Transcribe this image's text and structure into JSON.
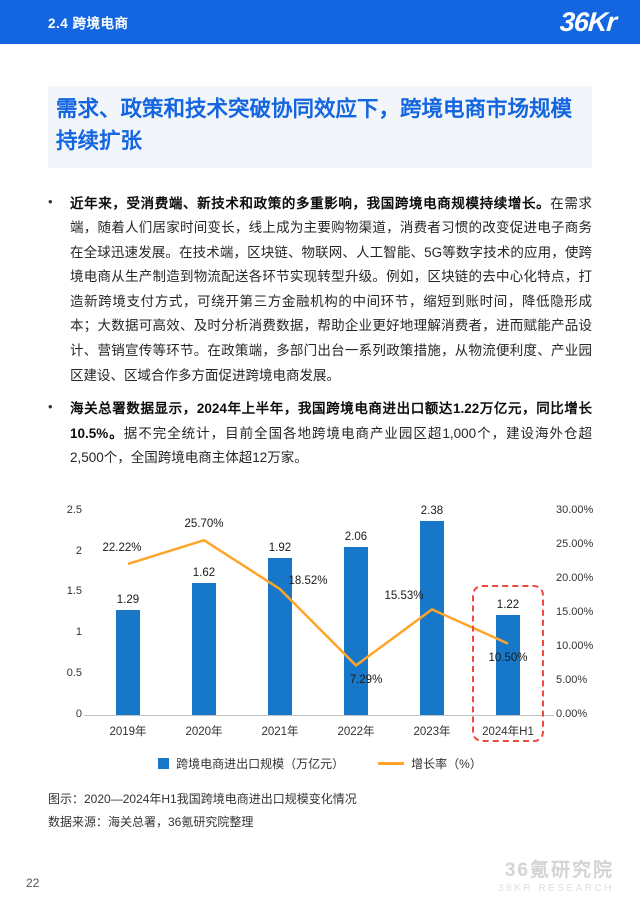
{
  "header": {
    "section": "2.4 跨境电商",
    "logo": "36Kr"
  },
  "title": "需求、政策和技术突破协同效应下，跨境电商市场规模持续扩张",
  "bullets": [
    {
      "bold": "近年来，受消费端、新技术和政策的多重影响，我国跨境电商规模持续增长。",
      "rest": "在需求端，随着人们居家时间变长，线上成为主要购物渠道，消费者习惯的改变促进电子商务在全球迅速发展。在技术端，区块链、物联网、人工智能、5G等数字技术的应用，使跨境电商从生产制造到物流配送各环节实现转型升级。例如，区块链的去中心化特点，打造新跨境支付方式，可绕开第三方金融机构的中间环节，缩短到账时间，降低隐形成本；大数据可高效、及时分析消费数据，帮助企业更好地理解消费者，进而赋能产品设计、营销宣传等环节。在政策端，多部门出台一系列政策措施，从物流便利度、产业园区建设、区域合作多方面促进跨境电商发展。"
    },
    {
      "bold": "海关总署数据显示，2024年上半年，我国跨境电商进出口额达1.22万亿元，同比增长10.5%。",
      "rest": "据不完全统计，目前全国各地跨境电商产业园区超1,000个，建设海外仓超2,500个，全国跨境电商主体超12万家。"
    }
  ],
  "chart_data": {
    "type": "bar",
    "subtype": "bar+line combo, dual axis",
    "categories": [
      "2019年",
      "2020年",
      "2021年",
      "2022年",
      "2023年",
      "2024年H1"
    ],
    "series": [
      {
        "name": "跨境电商进出口规模（万亿元）",
        "type": "bar",
        "axis": "left",
        "color": "#1778c9",
        "values": [
          1.29,
          1.62,
          1.92,
          2.06,
          2.38,
          1.22
        ]
      },
      {
        "name": "增长率（%）",
        "type": "line",
        "axis": "right",
        "color": "#ffa428",
        "values": [
          22.22,
          25.7,
          18.52,
          7.29,
          15.53,
          10.5
        ]
      }
    ],
    "bar_labels": [
      "1.29",
      "1.62",
      "1.92",
      "2.06",
      "2.38",
      "1.22"
    ],
    "line_labels": [
      "22.22%",
      "25.70%",
      "18.52%",
      "7.29%",
      "15.53%",
      "10.50%"
    ],
    "left_axis": {
      "min": 0,
      "max": 2.5,
      "step": 0.5,
      "ticks": [
        "0",
        "0.5",
        "1",
        "1.5",
        "2",
        "2.5"
      ]
    },
    "right_axis": {
      "min": 0,
      "max": 30,
      "step": 5,
      "ticks": [
        "0.00%",
        "5.00%",
        "10.00%",
        "15.00%",
        "20.00%",
        "25.00%",
        "30.00%"
      ]
    },
    "grid": false,
    "legend_position": "bottom",
    "legend": [
      "跨境电商进出口规模（万亿元）",
      "增长率（%）"
    ],
    "highlight_category": "2024年H1",
    "highlight_color": "#ee4b40"
  },
  "captions": [
    "图示：2020—2024年H1我国跨境电商进出口规模变化情况",
    "数据来源：海关总署，36氪研究院整理"
  ],
  "page_number": "22",
  "watermark": {
    "line1": "36氪研究院",
    "line2": "36KR RESEARCH"
  }
}
